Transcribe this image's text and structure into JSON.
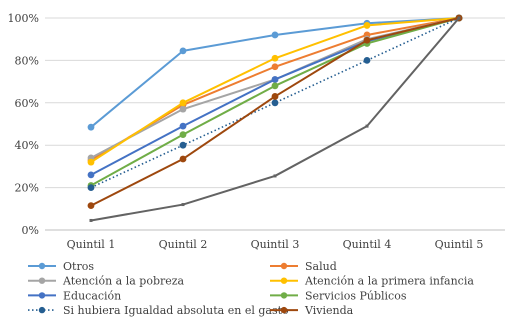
{
  "chart_data": {
    "type": "line",
    "title": "",
    "xlabel": "",
    "ylabel": "",
    "categories": [
      "Quintil 1",
      "Quintil 2",
      "Quintil 3",
      "Quintil 4",
      "Quintil 5"
    ],
    "ylim": [
      0,
      100
    ],
    "yticks": [
      "0%",
      "20%",
      "40%",
      "60%",
      "80%",
      "100%"
    ],
    "grid": "horizontal",
    "legend_position": "bottom",
    "series": [
      {
        "name": "Otros",
        "color": "#5b9bd5",
        "style": "solid",
        "marker": true,
        "values": [
          48.5,
          84.5,
          92,
          97.5,
          100
        ]
      },
      {
        "name": "Salud",
        "color": "#ed7d31",
        "style": "solid",
        "marker": true,
        "values": [
          33,
          59,
          77,
          92,
          100
        ]
      },
      {
        "name": "Atención a la pobreza",
        "color": "#a5a5a5",
        "style": "solid",
        "marker": true,
        "values": [
          34,
          57,
          71,
          90,
          100
        ]
      },
      {
        "name": "Atención a la primera infancia",
        "color": "#ffc000",
        "style": "solid",
        "marker": true,
        "values": [
          32,
          60,
          81,
          96.5,
          100
        ]
      },
      {
        "name": "Educación",
        "color": "#4472c4",
        "style": "solid",
        "marker": true,
        "values": [
          26,
          49,
          71,
          89,
          100
        ]
      },
      {
        "name": "Servicios Públicos",
        "color": "#70ad47",
        "style": "solid",
        "marker": true,
        "values": [
          21,
          45,
          68,
          88,
          100
        ]
      },
      {
        "name": "Si hubiera Igualdad absoluta  en el gasto",
        "color": "#255e91",
        "style": "dotted",
        "marker": true,
        "values": [
          20,
          40,
          60,
          80,
          100
        ]
      },
      {
        "name": "Vivienda",
        "color": "#9e480e",
        "style": "solid",
        "marker": true,
        "values": [
          11.5,
          33.5,
          63,
          89.5,
          100
        ]
      },
      {
        "name": "",
        "color": "#636363",
        "style": "solid",
        "marker": false,
        "values": [
          4.5,
          12,
          25.5,
          49,
          100
        ]
      }
    ]
  }
}
